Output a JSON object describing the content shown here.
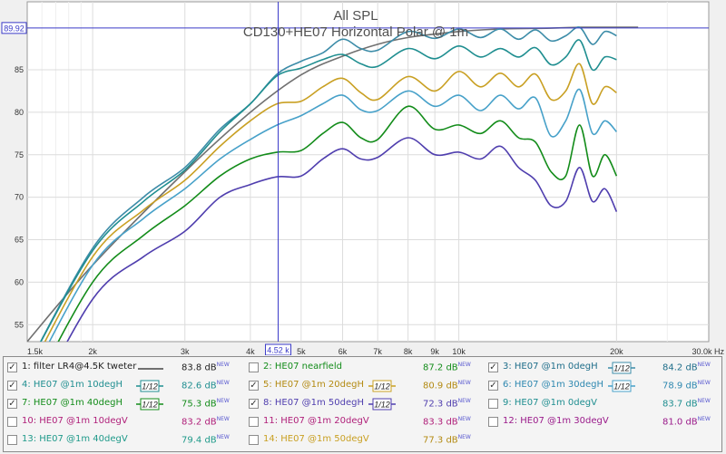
{
  "chart_data": {
    "type": "line",
    "title": "All SPL",
    "subtitle": "CD130+HE07 Horizontal Polar @ 1m",
    "xscale": "log",
    "xlim": [
      1500,
      30000
    ],
    "ylim": [
      53,
      93
    ],
    "x_ticks": [
      {
        "v": 1500,
        "label": "1.5k"
      },
      {
        "v": 2000,
        "label": "2k"
      },
      {
        "v": 3000,
        "label": "3k"
      },
      {
        "v": 4000,
        "label": "4k"
      },
      {
        "v": 5000,
        "label": "5k"
      },
      {
        "v": 6000,
        "label": "6k"
      },
      {
        "v": 7000,
        "label": "7k"
      },
      {
        "v": 8000,
        "label": "8k"
      },
      {
        "v": 9000,
        "label": "9k"
      },
      {
        "v": 10000,
        "label": "10k"
      },
      {
        "v": 20000,
        "label": "20k"
      },
      {
        "v": 30000,
        "label": "30.0k Hz"
      }
    ],
    "y_ticks": [
      {
        "v": 55,
        "label": "55"
      },
      {
        "v": 60,
        "label": "60"
      },
      {
        "v": 65,
        "label": "65"
      },
      {
        "v": 70,
        "label": "70"
      },
      {
        "v": 75,
        "label": "75"
      },
      {
        "v": 80,
        "label": "80"
      },
      {
        "v": 85,
        "label": "85"
      }
    ],
    "cursor": {
      "x": 4520,
      "y": 89.92,
      "x_label": "4.52 k",
      "y_label": "89.92"
    },
    "grid": true,
    "series": [
      {
        "name": "filter LR4@4.5K tweter",
        "color": "#707070",
        "x": [
          1500,
          2000,
          3000,
          4000,
          5000,
          6000,
          7000,
          8000,
          9000,
          10000,
          12000,
          15000,
          17000,
          20000,
          22000
        ],
        "y": [
          53,
          62,
          73,
          80,
          84.4,
          86.6,
          88,
          88.8,
          89.2,
          89.5,
          89.8,
          89.9,
          90,
          90,
          90
        ]
      },
      {
        "name": "HE07 @1m 0degH",
        "color": "#3c8ca8",
        "x": [
          1500,
          2000,
          2500,
          3000,
          3500,
          4000,
          4500,
          5000,
          5500,
          6000,
          6500,
          7000,
          8000,
          9000,
          10000,
          11000,
          12000,
          13000,
          14000,
          15000,
          16000,
          17000,
          18000,
          19000,
          20000
        ],
        "y": [
          50,
          64,
          70,
          73.5,
          78,
          81,
          84.5,
          86,
          87,
          88.6,
          87.5,
          87.3,
          89.5,
          88.7,
          89.8,
          88.8,
          89.8,
          88.6,
          89.7,
          88.4,
          89,
          90,
          88,
          89.5,
          89
        ]
      },
      {
        "name": "HE07 @1m 10degH",
        "color": "#1f8e90",
        "x": [
          1500,
          2000,
          2500,
          3000,
          3500,
          4000,
          4500,
          5000,
          5500,
          6000,
          6500,
          7000,
          8000,
          9000,
          10000,
          11000,
          12000,
          13000,
          14000,
          15000,
          16000,
          17000,
          18000,
          19000,
          20000
        ],
        "y": [
          50,
          63.7,
          69.5,
          73.2,
          77.7,
          81,
          84.3,
          85.2,
          86.2,
          86.8,
          85.7,
          85.4,
          87.5,
          86.3,
          87.8,
          86.5,
          87.5,
          86.5,
          87.6,
          85.6,
          86.5,
          88.5,
          85,
          86.5,
          86.2
        ]
      },
      {
        "name": "HE07 @1m 20degH",
        "color": "#c9a023",
        "x": [
          1500,
          2000,
          2500,
          3000,
          3500,
          4000,
          4500,
          5000,
          5500,
          6000,
          6500,
          7000,
          8000,
          9000,
          10000,
          11000,
          12000,
          13000,
          14000,
          15000,
          16000,
          17000,
          18000,
          19000,
          20000
        ],
        "y": [
          49,
          63,
          68.5,
          72,
          76,
          79,
          81,
          81.3,
          83,
          84,
          82.3,
          81.5,
          84.2,
          82.5,
          84.8,
          83,
          84.6,
          83,
          84.5,
          81.5,
          82.5,
          85.7,
          81,
          83,
          82.3
        ]
      },
      {
        "name": "HE07 @1m 30degH",
        "color": "#47a1c9",
        "x": [
          1500,
          2000,
          2500,
          3000,
          3500,
          4000,
          4500,
          5000,
          5500,
          6000,
          6500,
          7000,
          8000,
          9000,
          10000,
          11000,
          12000,
          13000,
          14000,
          15000,
          16000,
          17000,
          18000,
          19000,
          20000
        ],
        "y": [
          48,
          62,
          67.5,
          71,
          74.5,
          76.8,
          78.5,
          79.6,
          81,
          82,
          80.3,
          80.2,
          82.5,
          80.7,
          82,
          80.2,
          82,
          80.4,
          81.7,
          77.2,
          79,
          82.7,
          77.5,
          79,
          77.7
        ]
      },
      {
        "name": "HE07 @1m 40degH",
        "color": "#138c1a",
        "x": [
          1500,
          2000,
          2500,
          3000,
          3500,
          4000,
          4500,
          5000,
          5500,
          6000,
          6500,
          7000,
          8000,
          9000,
          10000,
          11000,
          12000,
          13000,
          14000,
          15000,
          16000,
          17000,
          18000,
          19000,
          20000
        ],
        "y": [
          46,
          60,
          65.5,
          69,
          72.5,
          74.5,
          75.3,
          75.5,
          77.5,
          78.8,
          77,
          76.8,
          80.7,
          78,
          78.5,
          77.5,
          79,
          77,
          76.5,
          73,
          72.5,
          78.5,
          72.5,
          75,
          72.5
        ]
      },
      {
        "name": "HE07 @1m 50degH",
        "color": "#4f3eae",
        "x": [
          1500,
          2000,
          2500,
          3000,
          3500,
          4000,
          4500,
          5000,
          5500,
          6000,
          6500,
          7000,
          8000,
          9000,
          10000,
          11000,
          12000,
          13000,
          14000,
          15000,
          16000,
          17000,
          18000,
          19000,
          20000
        ],
        "y": [
          44,
          58,
          63,
          66,
          70,
          71.5,
          72.4,
          72.5,
          74.5,
          75.7,
          74.5,
          74.7,
          77,
          75,
          75.3,
          74.5,
          76,
          73.5,
          72,
          69,
          69.5,
          73.5,
          69.5,
          71,
          68.3
        ]
      }
    ]
  },
  "legend": {
    "rows": [
      [
        {
          "checked": true,
          "name": "1: filter LR4@4.5K tweter",
          "name_color": "#222222",
          "swatch": "line",
          "swatch_color": "#707070",
          "value": "83.8 dB",
          "value_color": "#222222"
        },
        {
          "checked": false,
          "name": "2: HE07 nearfield",
          "name_color": "#138c1a",
          "swatch": "none",
          "swatch_color": "",
          "value": "87.2 dB",
          "value_color": "#138c1a"
        },
        {
          "checked": true,
          "name": "3: HE07 @1m 0degH",
          "name_color": "#1f6e8a",
          "swatch": "smooth",
          "swatch_color": "#3c8ca8",
          "value": "84.2 dB",
          "value_color": "#1f6e8a"
        }
      ],
      [
        {
          "checked": true,
          "name": "4: HE07 @1m 10degH",
          "name_color": "#1f8e90",
          "swatch": "smooth",
          "swatch_color": "#1f8e90",
          "value": "82.6 dB",
          "value_color": "#1f8e90"
        },
        {
          "checked": true,
          "name": "5: HE07 @1m 20degH",
          "name_color": "#b38a12",
          "swatch": "smooth",
          "swatch_color": "#c9a023",
          "value": "80.9 dB",
          "value_color": "#b38a12"
        },
        {
          "checked": true,
          "name": "6: HE07 @1m 30degH",
          "name_color": "#2e88b0",
          "swatch": "smooth",
          "swatch_color": "#47a1c9",
          "value": "78.9 dB",
          "value_color": "#2e88b0"
        }
      ],
      [
        {
          "checked": true,
          "name": "7: HE07 @1m 40degH",
          "name_color": "#138c1a",
          "swatch": "smooth",
          "swatch_color": "#138c1a",
          "value": "75.3 dB",
          "value_color": "#138c1a"
        },
        {
          "checked": true,
          "name": "8: HE07 @1m 50degH",
          "name_color": "#4f3eae",
          "swatch": "smooth",
          "swatch_color": "#4f3eae",
          "value": "72.3 dB",
          "value_color": "#4f3eae"
        },
        {
          "checked": false,
          "name": "9: HE07 @1m 0degV",
          "name_color": "#1f8e90",
          "swatch": "none",
          "swatch_color": "",
          "value": "83.7 dB",
          "value_color": "#1f8e90"
        }
      ],
      [
        {
          "checked": false,
          "name": "10: HE07 @1m 10degV",
          "name_color": "#b0207a",
          "swatch": "none",
          "swatch_color": "",
          "value": "83.2 dB",
          "value_color": "#b0207a"
        },
        {
          "checked": false,
          "name": "11: HE07 @1m 20degV",
          "name_color": "#b0207a",
          "swatch": "none",
          "swatch_color": "",
          "value": "83.3 dB",
          "value_color": "#b0207a"
        },
        {
          "checked": false,
          "name": "12: HE07 @1m 30degV",
          "name_color": "#9a1a8a",
          "swatch": "none",
          "swatch_color": "",
          "value": "81.0 dB",
          "value_color": "#9a1a8a"
        }
      ],
      [
        {
          "checked": false,
          "name": "13: HE07 @1m 40degV",
          "name_color": "#1f9a8a",
          "swatch": "none",
          "swatch_color": "",
          "value": "79.4 dB",
          "value_color": "#1f9a8a"
        },
        {
          "checked": false,
          "name": "14: HE07 @1m 50degV",
          "name_color": "#c9a023",
          "swatch": "none",
          "swatch_color": "",
          "value": "77.3 dB",
          "value_color": "#b38a12"
        }
      ]
    ],
    "new_label": "NEW",
    "smooth_label": "1/12"
  }
}
